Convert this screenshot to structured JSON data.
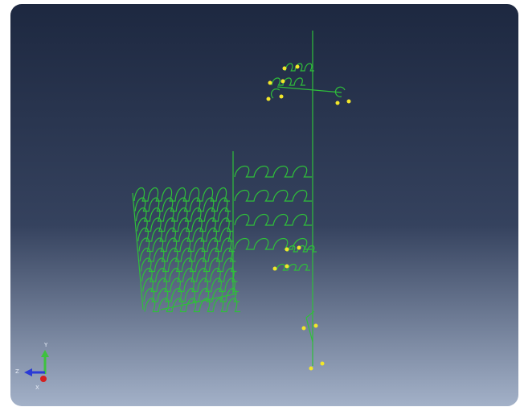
{
  "triad": {
    "y": "Y",
    "z": "Z",
    "x": "X"
  }
}
